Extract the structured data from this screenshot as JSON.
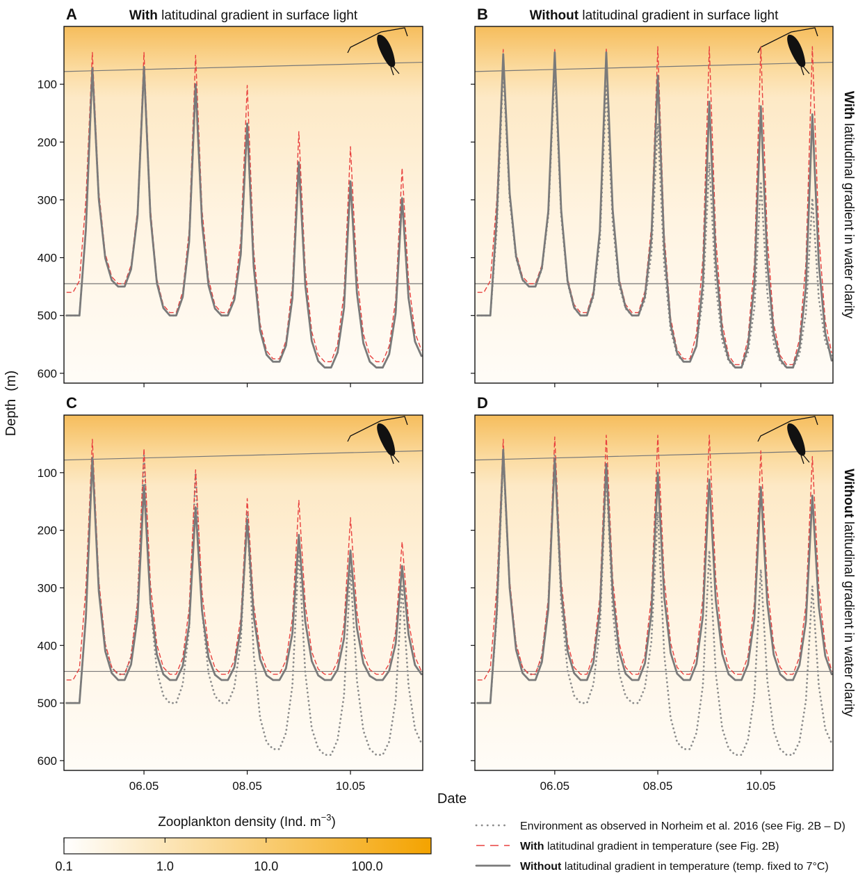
{
  "y_label": "Depth  (m)",
  "x_label": "Date",
  "colorbar": {
    "label": "Zooplankton density (Ind. m",
    "label_sup": "−3",
    "label_end": ")",
    "log": true,
    "clim": [
      0.1,
      429
    ],
    "colors": [
      "#ffffff",
      "#f4a300"
    ],
    "ticks": [
      0.1,
      {
        "value": 1,
        "label": "1.0"
      },
      {
        "value": 10,
        "label": "10.0"
      },
      {
        "value": 100,
        "label": "100.0"
      }
    ]
  },
  "legend": [
    {
      "text": "Environment as observed in Norheim et al. 2016 (see Fig. 2B – D)"
    },
    {
      "bold": "With",
      "text": " latitudinal gradient in temperature (see Fig. 2B)"
    },
    {
      "bold": "Without",
      "text": " latitudinal gradient in temperature (temp. fixed to 7°C)"
    }
  ],
  "chart_data": [
    {
      "type": "line",
      "letter": "A",
      "title": {
        "bold": "With",
        "text": " latitudinal gradient in surface light"
      },
      "xlim": [
        4.45,
        11.4
      ],
      "ylim": [
        0,
        617
      ],
      "xticks": [
        6,
        8,
        10
      ],
      "yticks": [
        100,
        200,
        300,
        400,
        500,
        600
      ],
      "show_xtick_labels": false,
      "show_ytick_labels": true,
      "contours": [
        [
          78,
          62
        ],
        [
          445,
          445
        ]
      ],
      "x": [
        4.5,
        4.625,
        4.75,
        4.875,
        5,
        5.125,
        5.25,
        5.375,
        5.5,
        5.625,
        5.75,
        5.875,
        6,
        6.125,
        6.25,
        6.375,
        6.5,
        6.625,
        6.75,
        6.875,
        7,
        7.125,
        7.25,
        7.375,
        7.5,
        7.625,
        7.75,
        7.875,
        8,
        8.125,
        8.25,
        8.375,
        8.5,
        8.625,
        8.75,
        8.875,
        9,
        9.125,
        9.25,
        9.375,
        9.5,
        9.625,
        9.75,
        9.875,
        10,
        10.125,
        10.25,
        10.375,
        10.5,
        10.625,
        10.75,
        10.875,
        11,
        11.125,
        11.25,
        11.375
      ],
      "series": [
        {
          "color": "#8c8c8c",
          "dash": "dotted",
          "values": [
            500,
            500,
            500,
            350,
            72,
            299,
            401,
            439,
            450,
            450,
            420,
            328,
            70,
            328,
            444,
            487,
            500,
            500,
            468,
            372,
            100,
            340,
            448,
            488,
            500,
            500,
            473,
            394,
            168,
            415,
            526,
            568,
            580,
            580,
            552,
            470,
            235,
            448,
            544,
            579,
            590,
            590,
            564,
            487,
            268,
            461,
            548,
            580,
            590,
            590,
            567,
            496,
            297,
            470,
            545,
            570
          ]
        },
        {
          "color": "#e8413f",
          "dash": "dashed",
          "values": [
            460,
            460,
            440,
            300,
            45,
            285,
            393,
            433,
            445,
            445,
            413,
            317,
            45,
            315,
            437,
            482,
            495,
            495,
            459,
            353,
            50,
            317,
            437,
            482,
            495,
            495,
            464,
            369,
            102,
            386,
            514,
            561,
            575,
            575,
            544,
            449,
            182,
            421,
            528,
            568,
            580,
            580,
            550,
            461,
            208,
            431,
            532,
            569,
            580,
            580,
            553,
            473,
            245,
            440,
            530,
            560
          ]
        },
        {
          "color": "#7a7a7a",
          "dash": "solid",
          "values": [
            500,
            500,
            500,
            350,
            72,
            299,
            401,
            439,
            450,
            450,
            420,
            328,
            70,
            328,
            444,
            487,
            500,
            500,
            468,
            372,
            100,
            340,
            448,
            488,
            500,
            500,
            473,
            394,
            168,
            415,
            526,
            568,
            580,
            580,
            552,
            470,
            235,
            448,
            544,
            579,
            590,
            590,
            564,
            487,
            268,
            461,
            548,
            580,
            590,
            590,
            567,
            496,
            297,
            470,
            545,
            570
          ]
        }
      ]
    },
    {
      "type": "line",
      "letter": "B",
      "title": {
        "bold": "Without",
        "text": " latitudinal gradient in surface light"
      },
      "side_label": {
        "bold": "With",
        "text": " latitudinal gradient in water clarity"
      },
      "xlim": [
        4.45,
        11.4
      ],
      "ylim": [
        0,
        617
      ],
      "xticks": [
        6,
        8,
        10
      ],
      "yticks": [
        100,
        200,
        300,
        400,
        500,
        600
      ],
      "show_xtick_labels": false,
      "show_ytick_labels": false,
      "contours": [
        [
          78,
          62
        ],
        [
          445,
          445
        ]
      ],
      "x": [
        4.5,
        4.625,
        4.75,
        4.875,
        5,
        5.125,
        5.25,
        5.375,
        5.5,
        5.625,
        5.75,
        5.875,
        6,
        6.125,
        6.25,
        6.375,
        6.5,
        6.625,
        6.75,
        6.875,
        7,
        7.125,
        7.25,
        7.375,
        7.5,
        7.625,
        7.75,
        7.875,
        8,
        8.125,
        8.25,
        8.375,
        8.5,
        8.625,
        8.75,
        8.875,
        9,
        9.125,
        9.25,
        9.375,
        9.5,
        9.625,
        9.75,
        9.875,
        10,
        10.125,
        10.25,
        10.375,
        10.5,
        10.625,
        10.75,
        10.875,
        11,
        11.125,
        11.25,
        11.375
      ],
      "series": [
        {
          "color": "#8c8c8c",
          "dash": "dotted",
          "values": [
            500,
            500,
            500,
            350,
            72,
            299,
            401,
            439,
            450,
            450,
            420,
            328,
            70,
            328,
            444,
            487,
            500,
            500,
            468,
            372,
            100,
            340,
            448,
            488,
            500,
            500,
            473,
            394,
            168,
            415,
            526,
            568,
            580,
            580,
            552,
            470,
            235,
            448,
            544,
            579,
            590,
            590,
            564,
            487,
            268,
            461,
            548,
            580,
            590,
            590,
            567,
            496,
            297,
            470,
            545,
            570
          ]
        },
        {
          "color": "#e8413f",
          "dash": "dashed",
          "values": [
            460,
            460,
            440,
            300,
            40,
            283,
            392,
            433,
            445,
            445,
            413,
            315,
            40,
            313,
            436,
            481,
            495,
            495,
            458,
            349,
            38,
            312,
            436,
            481,
            495,
            495,
            458,
            348,
            35,
            359,
            505,
            559,
            575,
            575,
            532,
            402,
            35,
            365,
            514,
            569,
            585,
            585,
            541,
            409,
            35,
            365,
            514,
            569,
            585,
            585,
            541,
            409,
            35,
            360,
            510,
            565
          ]
        },
        {
          "color": "#7a7a7a",
          "dash": "solid",
          "values": [
            500,
            500,
            500,
            330,
            48,
            289,
            398,
            438,
            450,
            450,
            418,
            320,
            45,
            318,
            441,
            486,
            500,
            500,
            464,
            354,
            45,
            318,
            441,
            486,
            500,
            500,
            467,
            367,
            85,
            382,
            516,
            565,
            580,
            580,
            553,
            443,
            130,
            406,
            530,
            576,
            590,
            590,
            554,
            445,
            138,
            409,
            531,
            576,
            590,
            590,
            555,
            450,
            152,
            410,
            530,
            578
          ]
        }
      ]
    },
    {
      "type": "line",
      "letter": "C",
      "xlim": [
        4.45,
        11.4
      ],
      "ylim": [
        0,
        617
      ],
      "xticks": [
        {
          "value": 6,
          "label": "06.05"
        },
        {
          "value": 8,
          "label": "08.05"
        },
        {
          "value": 10,
          "label": "10.05"
        }
      ],
      "yticks": [
        100,
        200,
        300,
        400,
        500,
        600
      ],
      "show_xtick_labels": true,
      "show_ytick_labels": true,
      "contours": [
        [
          78,
          62
        ],
        [
          445,
          445
        ]
      ],
      "x": [
        4.5,
        4.625,
        4.75,
        4.875,
        5,
        5.125,
        5.25,
        5.375,
        5.5,
        5.625,
        5.75,
        5.875,
        6,
        6.125,
        6.25,
        6.375,
        6.5,
        6.625,
        6.75,
        6.875,
        7,
        7.125,
        7.25,
        7.375,
        7.5,
        7.625,
        7.75,
        7.875,
        8,
        8.125,
        8.25,
        8.375,
        8.5,
        8.625,
        8.75,
        8.875,
        9,
        9.125,
        9.25,
        9.375,
        9.5,
        9.625,
        9.75,
        9.875,
        10,
        10.125,
        10.25,
        10.375,
        10.5,
        10.625,
        10.75,
        10.875,
        11,
        11.125,
        11.25,
        11.375
      ],
      "series": [
        {
          "color": "#8c8c8c",
          "dash": "dotted",
          "values": [
            500,
            500,
            500,
            350,
            72,
            299,
            401,
            439,
            450,
            450,
            420,
            328,
            70,
            328,
            444,
            487,
            500,
            500,
            468,
            372,
            100,
            340,
            448,
            488,
            500,
            500,
            473,
            394,
            168,
            415,
            526,
            568,
            580,
            580,
            552,
            470,
            235,
            448,
            544,
            579,
            590,
            590,
            564,
            487,
            268,
            461,
            548,
            580,
            590,
            590,
            567,
            496,
            297,
            470,
            545,
            570
          ]
        },
        {
          "color": "#e8413f",
          "dash": "dashed",
          "values": [
            460,
            460,
            440,
            300,
            42,
            287,
            397,
            438,
            450,
            450,
            419,
            325,
            58,
            293,
            399,
            438,
            450,
            450,
            422,
            336,
            95,
            308,
            404,
            439,
            450,
            450,
            426,
            352,
            145,
            328,
            410,
            441,
            450,
            450,
            426,
            353,
            148,
            329,
            411,
            441,
            450,
            450,
            428,
            363,
            178,
            341,
            415,
            442,
            450,
            450,
            432,
            376,
            220,
            358,
            420,
            445
          ]
        },
        {
          "color": "#7a7a7a",
          "dash": "solid",
          "values": [
            500,
            500,
            500,
            350,
            75,
            306,
            410,
            448,
            460,
            460,
            433,
            352,
            122,
            325,
            416,
            450,
            460,
            460,
            436,
            364,
            160,
            340,
            421,
            451,
            460,
            460,
            438,
            371,
            182,
            349,
            424,
            452,
            460,
            460,
            440,
            379,
            208,
            359,
            427,
            452,
            460,
            460,
            442,
            388,
            235,
            370,
            431,
            453,
            460,
            460,
            444,
            397,
            262,
            381,
            434,
            450
          ]
        }
      ]
    },
    {
      "type": "line",
      "letter": "D",
      "side_label": {
        "bold": "Without",
        "text": " latitudinal gradient in water clarity"
      },
      "xlim": [
        4.45,
        11.4
      ],
      "ylim": [
        0,
        617
      ],
      "xticks": [
        {
          "value": 6,
          "label": "06.05"
        },
        {
          "value": 8,
          "label": "08.05"
        },
        {
          "value": 10,
          "label": "10.05"
        }
      ],
      "yticks": [
        100,
        200,
        300,
        400,
        500,
        600
      ],
      "show_xtick_labels": true,
      "show_ytick_labels": false,
      "contours": [
        [
          78,
          62
        ],
        [
          445,
          445
        ]
      ],
      "x": [
        4.5,
        4.625,
        4.75,
        4.875,
        5,
        5.125,
        5.25,
        5.375,
        5.5,
        5.625,
        5.75,
        5.875,
        6,
        6.125,
        6.25,
        6.375,
        6.5,
        6.625,
        6.75,
        6.875,
        7,
        7.125,
        7.25,
        7.375,
        7.5,
        7.625,
        7.75,
        7.875,
        8,
        8.125,
        8.25,
        8.375,
        8.5,
        8.625,
        8.75,
        8.875,
        9,
        9.125,
        9.25,
        9.375,
        9.5,
        9.625,
        9.75,
        9.875,
        10,
        10.125,
        10.25,
        10.375,
        10.5,
        10.625,
        10.75,
        10.875,
        11,
        11.125,
        11.25,
        11.375
      ],
      "series": [
        {
          "color": "#8c8c8c",
          "dash": "dotted",
          "values": [
            500,
            500,
            500,
            350,
            72,
            299,
            401,
            439,
            450,
            450,
            420,
            328,
            70,
            328,
            444,
            487,
            500,
            500,
            468,
            372,
            100,
            340,
            448,
            488,
            500,
            500,
            473,
            394,
            168,
            415,
            526,
            568,
            580,
            580,
            552,
            470,
            235,
            448,
            544,
            579,
            590,
            590,
            564,
            487,
            268,
            461,
            548,
            580,
            590,
            590,
            567,
            496,
            297,
            470,
            545,
            570
          ]
        },
        {
          "color": "#e8413f",
          "dash": "dashed",
          "values": [
            460,
            460,
            440,
            300,
            42,
            287,
            397,
            438,
            450,
            450,
            417,
            318,
            38,
            285,
            396,
            438,
            450,
            450,
            417,
            317,
            35,
            284,
            396,
            438,
            450,
            450,
            417,
            317,
            35,
            284,
            396,
            438,
            450,
            450,
            417,
            317,
            35,
            284,
            396,
            438,
            450,
            450,
            419,
            326,
            62,
            295,
            400,
            438,
            450,
            450,
            420,
            329,
            72,
            299,
            401,
            445
          ]
        },
        {
          "color": "#7a7a7a",
          "dash": "solid",
          "values": [
            500,
            500,
            500,
            340,
            60,
            300,
            408,
            448,
            460,
            460,
            429,
            337,
            75,
            306,
            410,
            448,
            460,
            460,
            430,
            340,
            85,
            310,
            411,
            449,
            460,
            460,
            431,
            345,
            100,
            316,
            413,
            449,
            460,
            460,
            432,
            349,
            112,
            321,
            415,
            450,
            460,
            460,
            433,
            353,
            125,
            326,
            416,
            450,
            460,
            460,
            434,
            358,
            140,
            332,
            418,
            450
          ]
        }
      ]
    }
  ]
}
